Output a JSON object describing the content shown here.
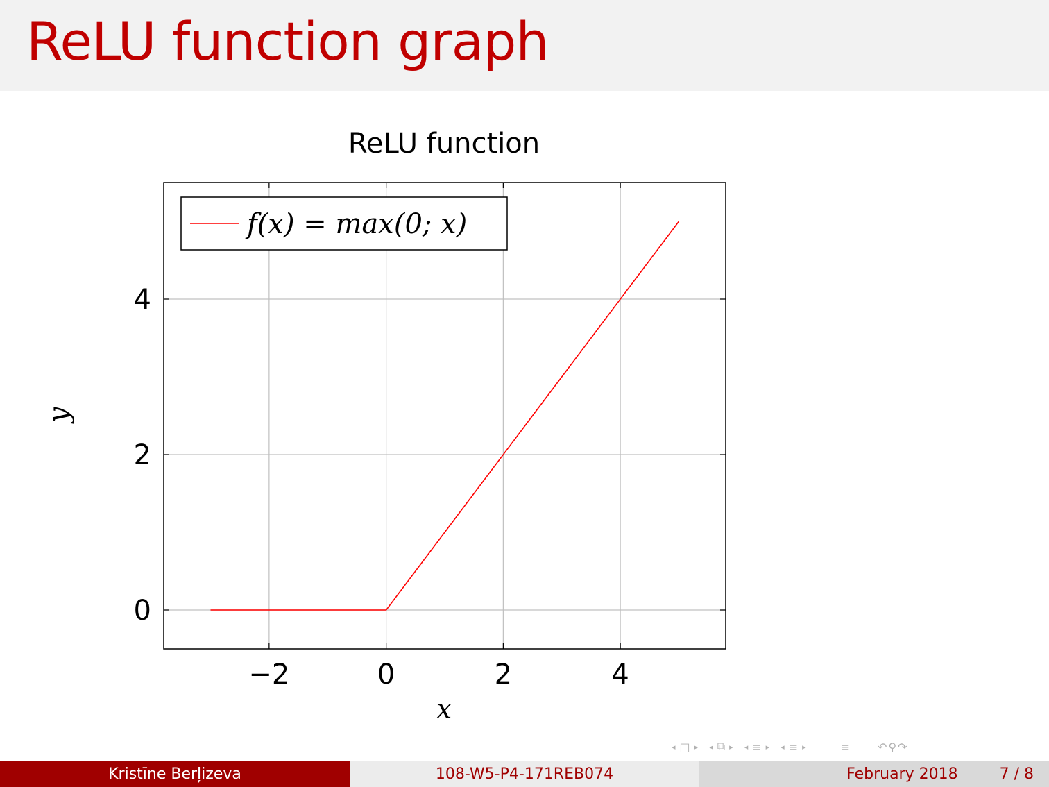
{
  "slide": {
    "title": "ReLU function graph"
  },
  "chart_data": {
    "type": "line",
    "title": "ReLU function",
    "xlabel": "x",
    "ylabel": "y",
    "xlim": [
      -3.8,
      5.8
    ],
    "ylim": [
      -0.5,
      5.5
    ],
    "xticks": [
      -2,
      0,
      2,
      4
    ],
    "xtick_labels": [
      "−2",
      "0",
      "2",
      "4"
    ],
    "yticks": [
      0,
      2,
      4
    ],
    "ytick_labels": [
      "0",
      "2",
      "4"
    ],
    "grid": true,
    "legend": "top-left",
    "series": [
      {
        "name": "f(x) = max(0; x)",
        "color": "#ff0000",
        "x": [
          -3,
          0,
          5
        ],
        "y": [
          0,
          0,
          5
        ]
      }
    ]
  },
  "footer": {
    "author": "Kristīne Berļizeva",
    "title": "108-W5-P4-171REB074",
    "date": "February 2018",
    "page": "7 / 8"
  },
  "nav_icons": [
    "frame-nav-icon",
    "subsection-nav-icon",
    "section-nav-icon",
    "appendix-nav-icon",
    "toc-nav-icon",
    "search-nav-icon"
  ]
}
